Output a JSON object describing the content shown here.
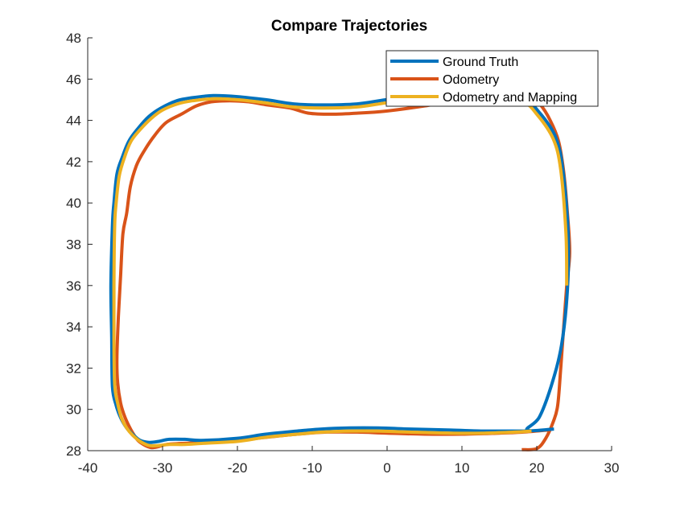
{
  "chart_data": {
    "type": "line",
    "title": "Compare Trajectories",
    "xlabel": "",
    "ylabel": "",
    "xlim": [
      -40,
      30
    ],
    "ylim": [
      28,
      48
    ],
    "xticks": [
      -40,
      -30,
      -20,
      -10,
      0,
      10,
      20,
      30
    ],
    "yticks": [
      28,
      30,
      32,
      34,
      36,
      38,
      40,
      42,
      44,
      46,
      48
    ],
    "grid": false,
    "legend_position": "northeast",
    "series": [
      {
        "name": "Ground Truth",
        "color": "#0072BD",
        "points": [
          [
            22.3,
            29.05
          ],
          [
            18.7,
            29.0
          ],
          [
            20.3,
            29.6
          ],
          [
            21.9,
            31.1
          ],
          [
            23.3,
            33.1
          ],
          [
            24.1,
            35.8
          ],
          [
            24.2,
            38.5
          ],
          [
            23.5,
            41.6
          ],
          [
            22.5,
            43.2
          ],
          [
            20.3,
            44.4
          ],
          [
            18.2,
            45.0
          ],
          [
            12.8,
            45.3
          ],
          [
            5.0,
            45.2
          ],
          [
            -0.1,
            45.0
          ],
          [
            -4.0,
            44.8
          ],
          [
            -8.7,
            44.75
          ],
          [
            -12.5,
            44.8
          ],
          [
            -16.2,
            45.0
          ],
          [
            -20.0,
            45.15
          ],
          [
            -23.2,
            45.2
          ],
          [
            -26.0,
            45.1
          ],
          [
            -28.1,
            44.95
          ],
          [
            -30.2,
            44.6
          ],
          [
            -31.8,
            44.2
          ],
          [
            -33.3,
            43.6
          ],
          [
            -34.5,
            43.0
          ],
          [
            -35.4,
            42.2
          ],
          [
            -36.1,
            41.4
          ],
          [
            -36.5,
            40.0
          ],
          [
            -36.7,
            38.9
          ],
          [
            -36.9,
            36.0
          ],
          [
            -36.8,
            33.5
          ],
          [
            -36.7,
            31.1
          ],
          [
            -36.2,
            30.2
          ],
          [
            -35.6,
            29.6
          ],
          [
            -34.8,
            29.1
          ],
          [
            -34.0,
            28.8
          ],
          [
            -33.0,
            28.5
          ],
          [
            -31.8,
            28.4
          ],
          [
            -30.5,
            28.45
          ],
          [
            -29.1,
            28.55
          ],
          [
            -27.0,
            28.55
          ],
          [
            -24.8,
            28.5
          ],
          [
            -20.0,
            28.6
          ],
          [
            -16.2,
            28.8
          ],
          [
            -12.0,
            28.95
          ],
          [
            -8.7,
            29.05
          ],
          [
            -5.0,
            29.1
          ],
          [
            -1.2,
            29.1
          ],
          [
            3.0,
            29.05
          ],
          [
            8.5,
            29.0
          ],
          [
            13.0,
            28.95
          ],
          [
            17.1,
            28.95
          ],
          [
            18.7,
            28.95
          ]
        ]
      },
      {
        "name": "Odometry",
        "color": "#D95319",
        "points": [
          [
            18.0,
            28.05
          ],
          [
            20.0,
            28.1
          ],
          [
            21.2,
            28.6
          ],
          [
            22.2,
            29.4
          ],
          [
            22.8,
            30.2
          ],
          [
            23.2,
            32.0
          ],
          [
            23.6,
            34.0
          ],
          [
            24.0,
            36.0
          ],
          [
            24.4,
            37.6
          ],
          [
            24.1,
            39.5
          ],
          [
            23.6,
            41.5
          ],
          [
            22.9,
            43.0
          ],
          [
            21.8,
            44.0
          ],
          [
            20.4,
            44.8
          ],
          [
            18.5,
            45.4
          ],
          [
            15.0,
            45.3
          ],
          [
            10.0,
            45.0
          ],
          [
            5.0,
            44.7
          ],
          [
            -0.2,
            44.45
          ],
          [
            -4.0,
            44.35
          ],
          [
            -7.5,
            44.3
          ],
          [
            -10.5,
            44.35
          ],
          [
            -13.0,
            44.6
          ],
          [
            -16.0,
            44.75
          ],
          [
            -18.5,
            44.9
          ],
          [
            -21.0,
            44.95
          ],
          [
            -23.5,
            44.9
          ],
          [
            -25.5,
            44.7
          ],
          [
            -27.5,
            44.3
          ],
          [
            -29.5,
            43.9
          ],
          [
            -31.0,
            43.3
          ],
          [
            -32.5,
            42.5
          ],
          [
            -33.5,
            41.8
          ],
          [
            -34.3,
            40.8
          ],
          [
            -34.8,
            39.5
          ],
          [
            -35.3,
            38.5
          ],
          [
            -35.6,
            36.5
          ],
          [
            -35.9,
            34.5
          ],
          [
            -36.1,
            32.5
          ],
          [
            -36.0,
            31.3
          ],
          [
            -35.6,
            30.3
          ],
          [
            -35.0,
            29.6
          ],
          [
            -34.2,
            29.0
          ],
          [
            -33.3,
            28.5
          ],
          [
            -32.3,
            28.25
          ],
          [
            -31.5,
            28.15
          ],
          [
            -30.5,
            28.2
          ],
          [
            -29.5,
            28.3
          ],
          [
            -27.5,
            28.35
          ],
          [
            -24.0,
            28.4
          ],
          [
            -20.0,
            28.5
          ],
          [
            -16.0,
            28.65
          ],
          [
            -12.0,
            28.8
          ],
          [
            -8.0,
            28.9
          ],
          [
            -4.0,
            28.9
          ],
          [
            0.0,
            28.85
          ],
          [
            5.0,
            28.8
          ],
          [
            10.0,
            28.8
          ],
          [
            15.0,
            28.85
          ],
          [
            18.2,
            28.9
          ],
          [
            21.5,
            29.0
          ]
        ]
      },
      {
        "name": "Odometry and Mapping",
        "color": "#EDB120",
        "points": [
          [
            19.3,
            28.95
          ],
          [
            17.0,
            28.9
          ],
          [
            13.0,
            28.85
          ],
          [
            8.5,
            28.85
          ],
          [
            3.0,
            28.9
          ],
          [
            -1.2,
            28.95
          ],
          [
            -5.0,
            28.95
          ],
          [
            -8.7,
            28.9
          ],
          [
            -12.0,
            28.8
          ],
          [
            -16.2,
            28.65
          ],
          [
            -20.0,
            28.45
          ],
          [
            -24.8,
            28.35
          ],
          [
            -27.0,
            28.3
          ],
          [
            -29.1,
            28.3
          ],
          [
            -30.5,
            28.25
          ],
          [
            -31.8,
            28.25
          ],
          [
            -33.0,
            28.45
          ],
          [
            -34.0,
            28.75
          ],
          [
            -34.8,
            29.1
          ],
          [
            -35.5,
            29.6
          ],
          [
            -36.0,
            30.3
          ],
          [
            -36.4,
            31.2
          ],
          [
            -36.5,
            33.5
          ],
          [
            -36.5,
            36.0
          ],
          [
            -36.4,
            38.9
          ],
          [
            -36.2,
            40.0
          ],
          [
            -35.8,
            41.3
          ],
          [
            -35.1,
            42.2
          ],
          [
            -34.2,
            43.0
          ],
          [
            -33.0,
            43.55
          ],
          [
            -31.5,
            44.1
          ],
          [
            -30.0,
            44.5
          ],
          [
            -28.0,
            44.8
          ],
          [
            -26.0,
            44.95
          ],
          [
            -23.2,
            45.05
          ],
          [
            -20.0,
            45.0
          ],
          [
            -16.2,
            44.85
          ],
          [
            -12.5,
            44.65
          ],
          [
            -8.7,
            44.6
          ],
          [
            -4.0,
            44.65
          ],
          [
            -0.1,
            44.85
          ],
          [
            5.0,
            45.05
          ],
          [
            12.8,
            45.2
          ],
          [
            18.0,
            44.9
          ],
          [
            20.0,
            44.3
          ],
          [
            22.2,
            43.1
          ],
          [
            23.2,
            41.6
          ],
          [
            23.9,
            38.5
          ],
          [
            24.0,
            36.0
          ]
        ]
      }
    ]
  },
  "title": "Compare Trajectories",
  "legend": {
    "items": [
      {
        "label": "Ground Truth",
        "color": "#0072BD"
      },
      {
        "label": "Odometry",
        "color": "#D95319"
      },
      {
        "label": "Odometry and Mapping",
        "color": "#EDB120"
      }
    ]
  },
  "axes": {
    "x_tick_labels": [
      "-40",
      "-30",
      "-20",
      "-10",
      "0",
      "10",
      "20",
      "30"
    ],
    "y_tick_labels": [
      "28",
      "30",
      "32",
      "34",
      "36",
      "38",
      "40",
      "42",
      "44",
      "46",
      "48"
    ]
  }
}
